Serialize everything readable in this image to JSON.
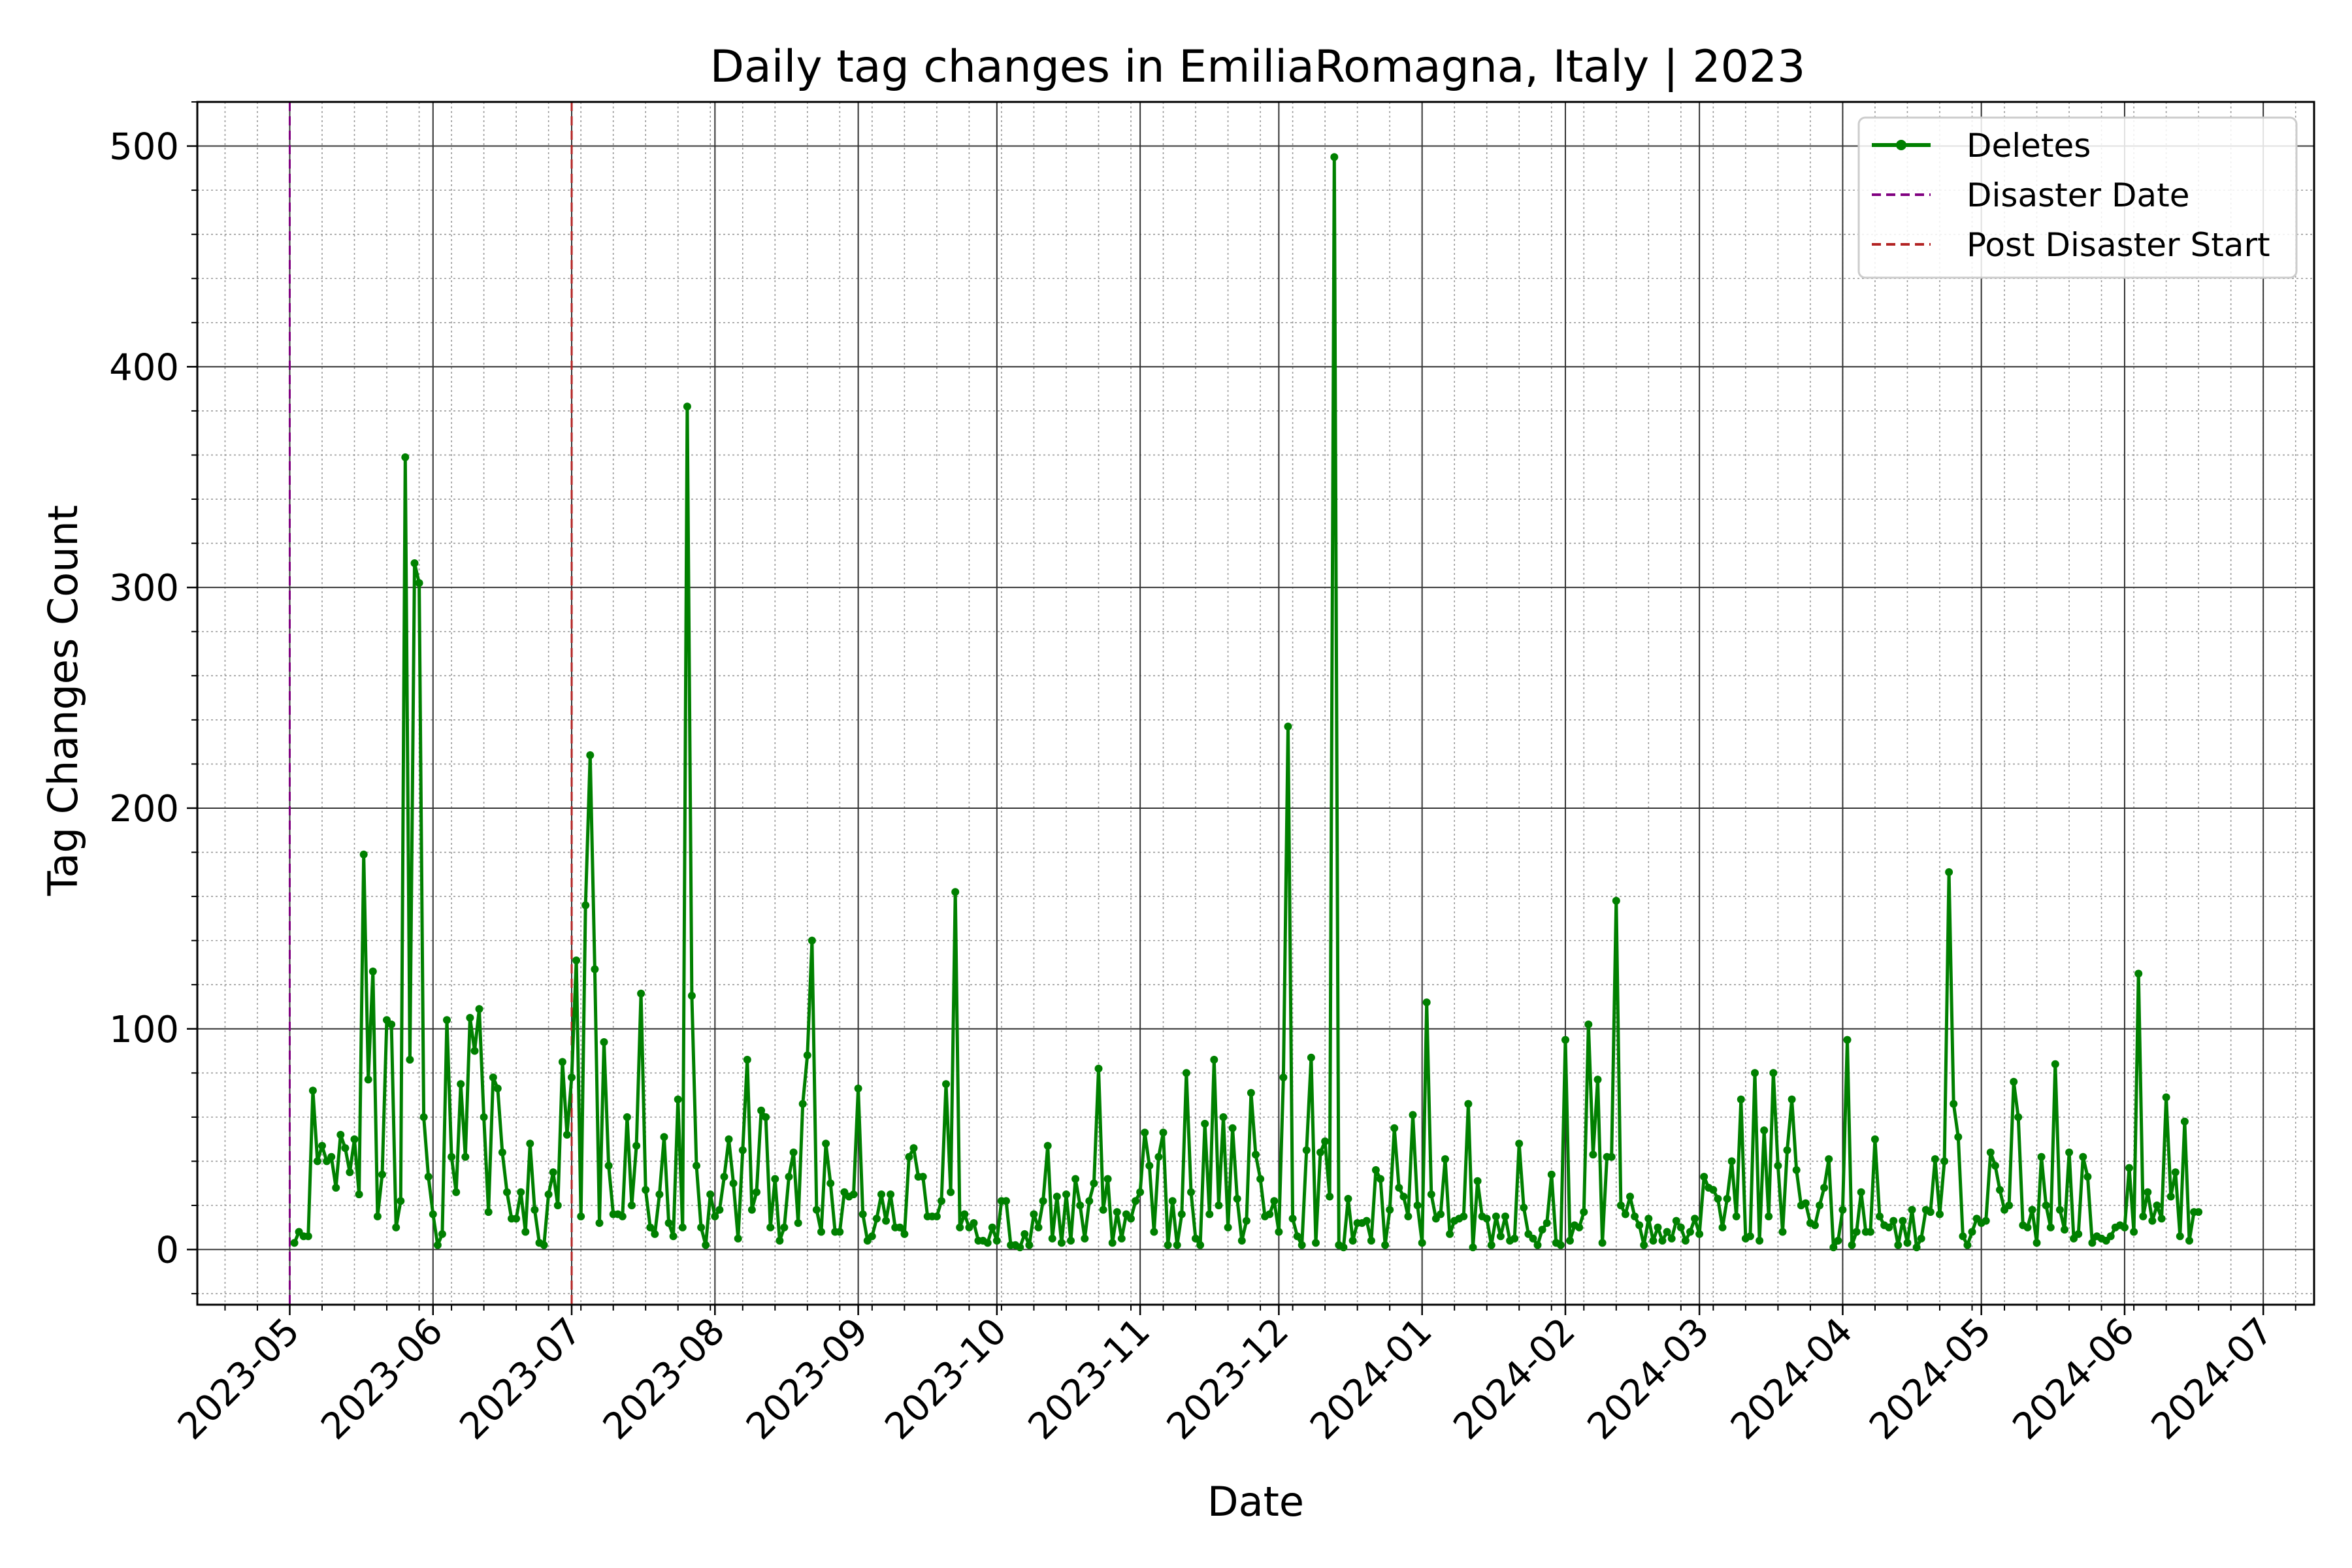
{
  "chart_data": {
    "type": "line",
    "title": "Daily tag changes in EmiliaRomagna, Italy | 2023",
    "xlabel": "Date",
    "ylabel": "Tag Changes Count",
    "x_range": [
      "2023-04-11",
      "2024-07-12"
    ],
    "ylim": [
      -25,
      520
    ],
    "y_ticks": [
      0,
      100,
      200,
      300,
      400,
      500
    ],
    "y_minor_step": 20,
    "x_ticks": [
      "2023-05",
      "2023-06",
      "2023-07",
      "2023-08",
      "2023-09",
      "2023-10",
      "2023-11",
      "2023-12",
      "2024-01",
      "2024-02",
      "2024-03",
      "2024-04",
      "2024-05",
      "2024-06",
      "2024-07"
    ],
    "x_tick_dates": [
      "2023-05-01",
      "2023-06-01",
      "2023-07-01",
      "2023-08-01",
      "2023-09-01",
      "2023-10-01",
      "2023-11-01",
      "2023-12-01",
      "2024-01-01",
      "2024-02-01",
      "2024-03-01",
      "2024-04-01",
      "2024-05-01",
      "2024-06-01",
      "2024-07-01"
    ],
    "grid": {
      "major": true,
      "minor": true
    },
    "legend_position": "top-right",
    "vlines": [
      {
        "name": "Disaster Date",
        "date": "2023-05-01",
        "color": "#800080",
        "style": "dashed"
      },
      {
        "name": "Post Disaster Start",
        "date": "2023-07-01",
        "color": "#b22222",
        "style": "dashed"
      }
    ],
    "series": [
      {
        "name": "Deletes",
        "color": "#008000",
        "marker": "circle",
        "start_date": "2023-05-02",
        "step_days": 1,
        "values": [
          3,
          8,
          6,
          6,
          72,
          40,
          47,
          40,
          42,
          28,
          52,
          46,
          35,
          50,
          25,
          179,
          77,
          126,
          15,
          34,
          104,
          102,
          10,
          22,
          359,
          86,
          311,
          302,
          60,
          33,
          16,
          2,
          7,
          104,
          42,
          26,
          75,
          42,
          105,
          90,
          109,
          60,
          17,
          78,
          73,
          44,
          26,
          14,
          14,
          26,
          8,
          48,
          18,
          3,
          2,
          25,
          35,
          20,
          85,
          52,
          78,
          131,
          15,
          156,
          224,
          127,
          12,
          94,
          38,
          16,
          16,
          15,
          60,
          20,
          47,
          116,
          27,
          10,
          7,
          25,
          51,
          12,
          6,
          68,
          10,
          382,
          115,
          38,
          10,
          2,
          25,
          15,
          18,
          33,
          50,
          30,
          5,
          45,
          86,
          18,
          26,
          63,
          60,
          10,
          32,
          4,
          10,
          33,
          44,
          12,
          66,
          88,
          140,
          18,
          8,
          48,
          30,
          8,
          8,
          26,
          24,
          25,
          73,
          16,
          4,
          6,
          14,
          25,
          13,
          25,
          10,
          10,
          7,
          42,
          46,
          33,
          33,
          15,
          15,
          15,
          22,
          75,
          26,
          162,
          10,
          16,
          10,
          12,
          4,
          4,
          3,
          10,
          4,
          22,
          22,
          2,
          2,
          1,
          7,
          2,
          16,
          10,
          22,
          47,
          5,
          24,
          3,
          25,
          4,
          32,
          20,
          5,
          22,
          30,
          82,
          18,
          32,
          3,
          17,
          5,
          16,
          14,
          22,
          26,
          53,
          38,
          8,
          42,
          53,
          2,
          22,
          2,
          16,
          80,
          26,
          5,
          2,
          57,
          16,
          86,
          20,
          60,
          10,
          55,
          23,
          4,
          13,
          71,
          43,
          32,
          15,
          16,
          22,
          8,
          78,
          237,
          14,
          6,
          2,
          45,
          87,
          3,
          44,
          49,
          24,
          495,
          2,
          1,
          23,
          4,
          12,
          12,
          13,
          4,
          36,
          32,
          2,
          18,
          55,
          28,
          24,
          15,
          61,
          20,
          3,
          112,
          25,
          14,
          16,
          41,
          7,
          13,
          14,
          15,
          66,
          1,
          31,
          15,
          14,
          2,
          15,
          6,
          15,
          4,
          5,
          48,
          19,
          7,
          5,
          2,
          9,
          12,
          34,
          3,
          2,
          95,
          4,
          11,
          10,
          17,
          102,
          43,
          77,
          3,
          42,
          42,
          158,
          20,
          16,
          24,
          15,
          11,
          2,
          14,
          4,
          10,
          4,
          8,
          5,
          13,
          10,
          4,
          8,
          14,
          7,
          33,
          28,
          27,
          23,
          10,
          23,
          40,
          15,
          68,
          5,
          6,
          80,
          4,
          54,
          15,
          80,
          38,
          8,
          45,
          68,
          36,
          20,
          21,
          12,
          11,
          20,
          28,
          41,
          1,
          4,
          18,
          95,
          2,
          8,
          26,
          8,
          8,
          50,
          15,
          11,
          10,
          13,
          2,
          13,
          3,
          18,
          1,
          5,
          18,
          17,
          41,
          16,
          40,
          171,
          66,
          51,
          6,
          2,
          8,
          14,
          12,
          13,
          44,
          38,
          27,
          18,
          20,
          76,
          60,
          11,
          10,
          18,
          3,
          42,
          20,
          10,
          84,
          18,
          9,
          44,
          5,
          7,
          42,
          33,
          3,
          6,
          5,
          4,
          6,
          10,
          11,
          10,
          37,
          8,
          125,
          15,
          26,
          13,
          20,
          14,
          69,
          24,
          35,
          6,
          58,
          4,
          17,
          17
        ]
      }
    ]
  }
}
